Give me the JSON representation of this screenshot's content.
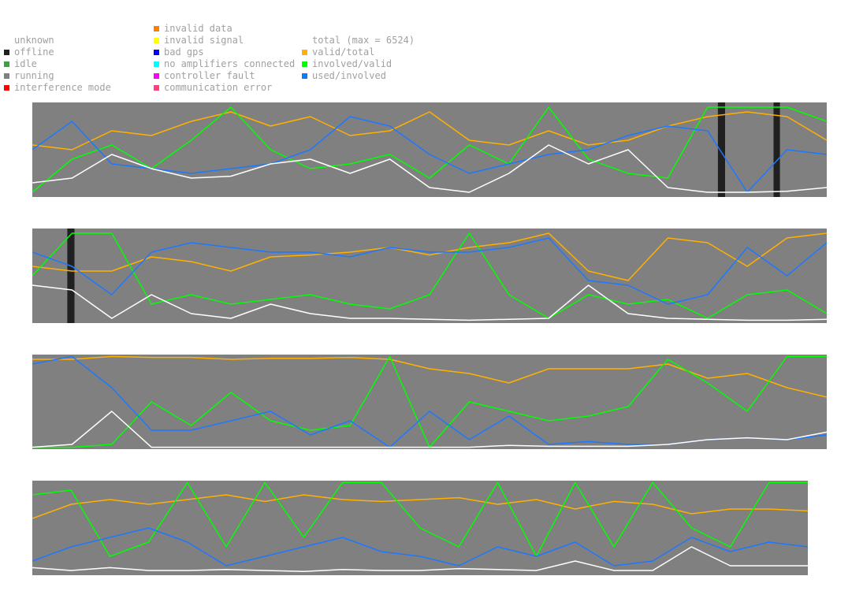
{
  "legend": {
    "states": [
      {
        "label": "unknown",
        "color": ""
      },
      {
        "label": "offline",
        "color": "#202020"
      },
      {
        "label": "idle",
        "color": "#40a040"
      },
      {
        "label": "running",
        "color": "#808080"
      },
      {
        "label": "interference mode",
        "color": "#ff0000"
      }
    ],
    "faults": [
      {
        "label": "invalid data",
        "color": "#ff8000"
      },
      {
        "label": "invalid signal",
        "color": "#ffff00"
      },
      {
        "label": "bad gps",
        "color": "#0000ff"
      },
      {
        "label": "no amplifiers connected",
        "color": "#00ffff"
      },
      {
        "label": "controller fault",
        "color": "#ff00ff"
      },
      {
        "label": "communication error",
        "color": "#ff4080"
      }
    ],
    "series": [
      {
        "label": "total (max = 6524)",
        "color": "#ffffff"
      },
      {
        "label": "valid/total",
        "color": "#ffb000"
      },
      {
        "label": "involved/valid",
        "color": "#00ff00"
      },
      {
        "label": "used/involved",
        "color": "#0080ff"
      }
    ]
  },
  "colors": {
    "background": "#808080",
    "total": "#ffffff",
    "valid_total": "#ffb000",
    "involved_valid": "#00ff00",
    "used_involved": "#1e78ff",
    "offline": "#202020"
  },
  "chart_data": [
    {
      "type": "line",
      "panel": 1,
      "ylim": [
        0,
        1
      ],
      "x": [
        0,
        0.05,
        0.1,
        0.15,
        0.2,
        0.25,
        0.3,
        0.35,
        0.4,
        0.45,
        0.5,
        0.55,
        0.6,
        0.65,
        0.7,
        0.75,
        0.8,
        0.85,
        0.9,
        0.95,
        1.0
      ],
      "offline_intervals": [
        [
          0.863,
          0.872
        ],
        [
          0.933,
          0.941
        ]
      ],
      "series": [
        {
          "name": "total (max = 6524)",
          "values": [
            0.15,
            0.2,
            0.45,
            0.3,
            0.2,
            0.22,
            0.35,
            0.4,
            0.25,
            0.4,
            0.1,
            0.05,
            0.25,
            0.55,
            0.35,
            0.5,
            0.1,
            0.05,
            0.05,
            0.06,
            0.1
          ]
        },
        {
          "name": "valid/total",
          "values": [
            0.55,
            0.5,
            0.7,
            0.65,
            0.8,
            0.9,
            0.75,
            0.85,
            0.65,
            0.7,
            0.9,
            0.6,
            0.55,
            0.7,
            0.55,
            0.6,
            0.75,
            0.85,
            0.9,
            0.85,
            0.6
          ]
        },
        {
          "name": "involved/valid",
          "values": [
            0.05,
            0.4,
            0.55,
            0.3,
            0.6,
            0.95,
            0.5,
            0.3,
            0.35,
            0.45,
            0.2,
            0.55,
            0.35,
            0.95,
            0.4,
            0.25,
            0.2,
            0.95,
            0.95,
            0.95,
            0.8
          ]
        },
        {
          "name": "used/involved",
          "values": [
            0.5,
            0.8,
            0.35,
            0.3,
            0.25,
            0.3,
            0.35,
            0.5,
            0.85,
            0.75,
            0.45,
            0.25,
            0.35,
            0.45,
            0.5,
            0.65,
            0.75,
            0.7,
            0.05,
            0.5,
            0.45
          ]
        }
      ]
    },
    {
      "type": "line",
      "panel": 2,
      "ylim": [
        0,
        1
      ],
      "x": [
        0,
        0.05,
        0.1,
        0.15,
        0.2,
        0.25,
        0.3,
        0.35,
        0.4,
        0.45,
        0.5,
        0.55,
        0.6,
        0.65,
        0.7,
        0.75,
        0.8,
        0.85,
        0.9,
        0.95,
        1.0
      ],
      "offline_intervals": [
        [
          0.044,
          0.053
        ]
      ],
      "series": [
        {
          "name": "total (max = 6524)",
          "values": [
            0.4,
            0.35,
            0.05,
            0.3,
            0.1,
            0.05,
            0.2,
            0.1,
            0.05,
            0.05,
            0.04,
            0.03,
            0.04,
            0.05,
            0.4,
            0.1,
            0.05,
            0.04,
            0.03,
            0.03,
            0.04
          ]
        },
        {
          "name": "valid/total",
          "values": [
            0.6,
            0.55,
            0.55,
            0.7,
            0.65,
            0.55,
            0.7,
            0.72,
            0.75,
            0.8,
            0.72,
            0.8,
            0.85,
            0.95,
            0.55,
            0.45,
            0.9,
            0.85,
            0.6,
            0.9,
            0.95
          ]
        },
        {
          "name": "involved/valid",
          "values": [
            0.5,
            0.95,
            0.95,
            0.2,
            0.3,
            0.2,
            0.25,
            0.3,
            0.2,
            0.15,
            0.3,
            0.95,
            0.3,
            0.05,
            0.3,
            0.2,
            0.25,
            0.05,
            0.3,
            0.35,
            0.1
          ]
        },
        {
          "name": "used/involved",
          "values": [
            0.75,
            0.6,
            0.3,
            0.75,
            0.85,
            0.8,
            0.75,
            0.75,
            0.7,
            0.8,
            0.75,
            0.75,
            0.8,
            0.9,
            0.45,
            0.4,
            0.2,
            0.3,
            0.8,
            0.5,
            0.85
          ]
        }
      ]
    },
    {
      "type": "line",
      "panel": 3,
      "ylim": [
        0,
        1
      ],
      "x": [
        0,
        0.05,
        0.1,
        0.15,
        0.2,
        0.25,
        0.3,
        0.35,
        0.4,
        0.45,
        0.5,
        0.55,
        0.6,
        0.65,
        0.7,
        0.75,
        0.8,
        0.85,
        0.9,
        0.95,
        1.0
      ],
      "offline_intervals": [],
      "series": [
        {
          "name": "total (max = 6524)",
          "values": [
            0.02,
            0.05,
            0.4,
            0.02,
            0.02,
            0.02,
            0.02,
            0.02,
            0.02,
            0.02,
            0.02,
            0.02,
            0.04,
            0.03,
            0.03,
            0.03,
            0.05,
            0.1,
            0.12,
            0.1,
            0.18
          ]
        },
        {
          "name": "valid/total",
          "values": [
            0.95,
            0.95,
            0.98,
            0.97,
            0.97,
            0.95,
            0.96,
            0.96,
            0.97,
            0.95,
            0.85,
            0.8,
            0.7,
            0.85,
            0.85,
            0.85,
            0.9,
            0.75,
            0.8,
            0.65,
            0.55
          ]
        },
        {
          "name": "involved/valid",
          "values": [
            0.02,
            0.02,
            0.05,
            0.5,
            0.25,
            0.6,
            0.3,
            0.2,
            0.25,
            0.98,
            0.02,
            0.5,
            0.4,
            0.3,
            0.35,
            0.45,
            0.95,
            0.7,
            0.4,
            0.98,
            0.98
          ]
        },
        {
          "name": "used/involved",
          "values": [
            0.9,
            0.98,
            0.65,
            0.2,
            0.2,
            0.3,
            0.4,
            0.15,
            0.3,
            0.02,
            0.4,
            0.1,
            0.35,
            0.05,
            0.08,
            0.05,
            0.05,
            0.1,
            0.12,
            0.1,
            0.15
          ]
        }
      ]
    },
    {
      "type": "line",
      "panel": 4,
      "ylim": [
        0,
        1
      ],
      "x": [
        0,
        0.05,
        0.1,
        0.15,
        0.2,
        0.25,
        0.3,
        0.35,
        0.4,
        0.45,
        0.5,
        0.55,
        0.6,
        0.65,
        0.7,
        0.75,
        0.8,
        0.85,
        0.9,
        0.95,
        1.0
      ],
      "offline_intervals": [],
      "series": [
        {
          "name": "total (max = 6524)",
          "values": [
            0.08,
            0.05,
            0.08,
            0.05,
            0.05,
            0.06,
            0.05,
            0.04,
            0.06,
            0.05,
            0.05,
            0.07,
            0.06,
            0.05,
            0.15,
            0.05,
            0.05,
            0.3,
            0.1,
            0.1,
            0.1
          ]
        },
        {
          "name": "valid/total",
          "values": [
            0.6,
            0.75,
            0.8,
            0.75,
            0.8,
            0.85,
            0.78,
            0.85,
            0.8,
            0.78,
            0.8,
            0.82,
            0.75,
            0.8,
            0.7,
            0.78,
            0.75,
            0.65,
            0.7,
            0.7,
            0.68
          ]
        },
        {
          "name": "involved/valid",
          "values": [
            0.85,
            0.9,
            0.2,
            0.35,
            0.98,
            0.3,
            0.98,
            0.4,
            0.98,
            0.98,
            0.5,
            0.3,
            0.98,
            0.2,
            0.98,
            0.3,
            0.98,
            0.5,
            0.3,
            0.98,
            0.98
          ]
        },
        {
          "name": "used/involved",
          "values": [
            0.15,
            0.3,
            0.4,
            0.5,
            0.35,
            0.1,
            0.2,
            0.3,
            0.4,
            0.25,
            0.2,
            0.1,
            0.3,
            0.2,
            0.35,
            0.1,
            0.15,
            0.4,
            0.25,
            0.35,
            0.3
          ]
        }
      ]
    }
  ]
}
